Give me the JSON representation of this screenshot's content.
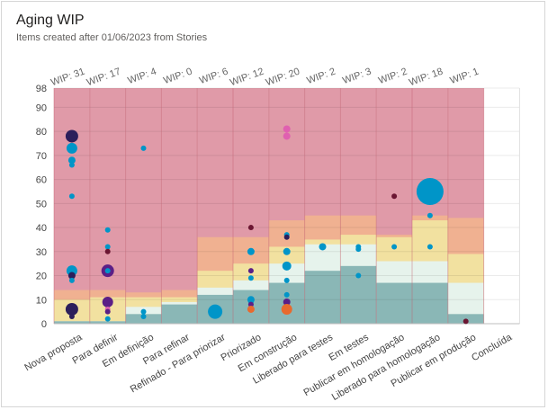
{
  "widget": {
    "title": "Aging WIP",
    "subtitle": "Items created after 01/06/2023 from Stories"
  },
  "chart_data": {
    "type": "scatter",
    "ylim": [
      0,
      98
    ],
    "yticks": [
      0,
      10,
      20,
      30,
      40,
      50,
      60,
      70,
      80,
      90,
      98
    ],
    "grid": true,
    "columns": [
      {
        "label": "Nova proposta",
        "wip": "WIP: 31"
      },
      {
        "label": "Para definir",
        "wip": "WIP: 17"
      },
      {
        "label": "Em definição",
        "wip": "WIP: 4"
      },
      {
        "label": "Para refinar",
        "wip": "WIP: 0"
      },
      {
        "label": "Refinado - Para priorizar",
        "wip": "WIP: 6"
      },
      {
        "label": "Priorizado",
        "wip": "WIP: 12"
      },
      {
        "label": "Em construção",
        "wip": "WIP: 20"
      },
      {
        "label": "Liberado para testes",
        "wip": "WIP: 2"
      },
      {
        "label": "Em testes",
        "wip": "WIP: 3"
      },
      {
        "label": "Publicar em homologação",
        "wip": "WIP: 2"
      },
      {
        "label": "Liberado para homologação",
        "wip": "WIP: 18"
      },
      {
        "label": "Publicar em produção",
        "wip": "WIP: 1"
      },
      {
        "label": "Concluída",
        "wip": ""
      }
    ],
    "bands": [
      {
        "color": "#e09aa8",
        "values": [
          98,
          98,
          98,
          98,
          98,
          98,
          98,
          98,
          98,
          98,
          98,
          98
        ]
      },
      {
        "color": "#f0b191",
        "values": [
          14,
          14,
          13,
          14,
          36,
          36,
          43,
          45,
          45,
          37,
          45,
          44
        ]
      },
      {
        "color": "#f2e1a0",
        "values": [
          10,
          11,
          11,
          11,
          22,
          25,
          32,
          35,
          37,
          36,
          43,
          29
        ]
      },
      {
        "color": "#e6f3ec",
        "values": [
          1,
          1,
          7,
          9,
          15,
          18,
          25,
          33,
          33,
          26,
          26,
          17
        ]
      },
      {
        "color": "#8ab7b6",
        "values": [
          1,
          1,
          4,
          8,
          12,
          14,
          17,
          22,
          24,
          17,
          17,
          4
        ]
      }
    ],
    "points": [
      {
        "col": 0,
        "y": 78,
        "size": 7,
        "color": "#2c1f5b"
      },
      {
        "col": 0,
        "y": 73,
        "size": 6,
        "color": "#0095c8"
      },
      {
        "col": 0,
        "y": 68,
        "size": 4,
        "color": "#0095c8"
      },
      {
        "col": 0,
        "y": 66,
        "size": 3,
        "color": "#0095c8"
      },
      {
        "col": 0,
        "y": 53,
        "size": 3,
        "color": "#0095c8"
      },
      {
        "col": 0,
        "y": 22,
        "size": 6,
        "color": "#0095c8"
      },
      {
        "col": 0,
        "y": 20,
        "size": 4,
        "color": "#2c1f5b"
      },
      {
        "col": 0,
        "y": 18,
        "size": 3,
        "color": "#0095c8"
      },
      {
        "col": 0,
        "y": 6,
        "size": 7,
        "color": "#2c1f5b"
      },
      {
        "col": 0,
        "y": 3,
        "size": 3,
        "color": "#2c1f5b"
      },
      {
        "col": 1,
        "y": 39,
        "size": 3,
        "color": "#0095c8"
      },
      {
        "col": 1,
        "y": 32,
        "size": 3,
        "color": "#0095c8"
      },
      {
        "col": 1,
        "y": 30,
        "size": 3,
        "color": "#6b1632"
      },
      {
        "col": 1,
        "y": 22,
        "size": 7,
        "color": "#5b1f86"
      },
      {
        "col": 1,
        "y": 22,
        "size": 3,
        "color": "#0095c8"
      },
      {
        "col": 1,
        "y": 9,
        "size": 6,
        "color": "#5b1f86"
      },
      {
        "col": 1,
        "y": 6,
        "size": 3,
        "color": "#e060b0"
      },
      {
        "col": 1,
        "y": 5,
        "size": 3,
        "color": "#5b1f86"
      },
      {
        "col": 1,
        "y": 2,
        "size": 3,
        "color": "#0095c8"
      },
      {
        "col": 2,
        "y": 73,
        "size": 3,
        "color": "#0095c8"
      },
      {
        "col": 2,
        "y": 5,
        "size": 3,
        "color": "#0095c8"
      },
      {
        "col": 2,
        "y": 3,
        "size": 3,
        "color": "#0095c8"
      },
      {
        "col": 4,
        "y": 5,
        "size": 8,
        "color": "#0095c8"
      },
      {
        "col": 5,
        "y": 40,
        "size": 3,
        "color": "#6b1632"
      },
      {
        "col": 5,
        "y": 30,
        "size": 4,
        "color": "#0095c8"
      },
      {
        "col": 5,
        "y": 22,
        "size": 3,
        "color": "#5b1f86"
      },
      {
        "col": 5,
        "y": 19,
        "size": 3,
        "color": "#0095c8"
      },
      {
        "col": 5,
        "y": 10,
        "size": 4,
        "color": "#0095c8"
      },
      {
        "col": 5,
        "y": 9,
        "size": 3,
        "color": "#0095c8"
      },
      {
        "col": 5,
        "y": 8,
        "size": 3,
        "color": "#5b1f86"
      },
      {
        "col": 5,
        "y": 6,
        "size": 4,
        "color": "#e86a2e"
      },
      {
        "col": 6,
        "y": 81,
        "size": 4,
        "color": "#e060b0"
      },
      {
        "col": 6,
        "y": 78,
        "size": 4,
        "color": "#e060b0"
      },
      {
        "col": 6,
        "y": 37,
        "size": 3,
        "color": "#0095c8"
      },
      {
        "col": 6,
        "y": 36,
        "size": 3,
        "color": "#2c1f5b"
      },
      {
        "col": 6,
        "y": 30,
        "size": 4,
        "color": "#0095c8"
      },
      {
        "col": 6,
        "y": 24,
        "size": 5,
        "color": "#0095c8"
      },
      {
        "col": 6,
        "y": 18,
        "size": 3,
        "color": "#0095c8"
      },
      {
        "col": 6,
        "y": 12,
        "size": 3,
        "color": "#0095c8"
      },
      {
        "col": 6,
        "y": 9,
        "size": 4,
        "color": "#5b1f86"
      },
      {
        "col": 6,
        "y": 6,
        "size": 6,
        "color": "#e86a2e"
      },
      {
        "col": 7,
        "y": 32,
        "size": 4,
        "color": "#0095c8"
      },
      {
        "col": 8,
        "y": 32,
        "size": 3,
        "color": "#0095c8"
      },
      {
        "col": 8,
        "y": 31,
        "size": 3,
        "color": "#0095c8"
      },
      {
        "col": 8,
        "y": 20,
        "size": 3,
        "color": "#0095c8"
      },
      {
        "col": 9,
        "y": 53,
        "size": 3,
        "color": "#6b1632"
      },
      {
        "col": 9,
        "y": 32,
        "size": 3,
        "color": "#0095c8"
      },
      {
        "col": 10,
        "y": 55,
        "size": 15,
        "color": "#0095c8"
      },
      {
        "col": 10,
        "y": 45,
        "size": 3,
        "color": "#0095c8"
      },
      {
        "col": 10,
        "y": 32,
        "size": 3,
        "color": "#0095c8"
      },
      {
        "col": 11,
        "y": 1,
        "size": 3,
        "color": "#6b1632"
      }
    ]
  }
}
